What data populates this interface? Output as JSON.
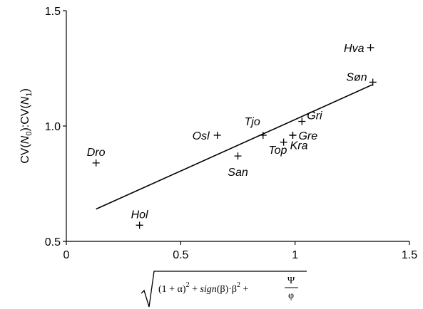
{
  "chart_data": {
    "type": "scatter",
    "title": "",
    "xlim": [
      0,
      1.5
    ],
    "ylim": [
      0.5,
      1.5
    ],
    "x_ticks": [
      0,
      0.5,
      1,
      1.5
    ],
    "x_tick_labels": [
      "0",
      "0.5",
      "1",
      "1.5"
    ],
    "y_ticks": [
      0.5,
      1.0,
      1.5
    ],
    "y_tick_labels": [
      "0.5",
      "1.0",
      "1.5"
    ],
    "ylabel": "CV(N0):CV(N1)",
    "xlabel": "sqrt((1 + α)^2 + sign(β)·β^2 + Ψ/φ)",
    "grid": false,
    "legend": "none",
    "points": [
      {
        "label": "Hva",
        "x": 1.33,
        "y": 1.34
      },
      {
        "label": "Søn",
        "x": 1.34,
        "y": 1.19
      },
      {
        "label": "Gri",
        "x": 1.03,
        "y": 1.02
      },
      {
        "label": "Gre",
        "x": 0.99,
        "y": 0.96
      },
      {
        "label": "Kra",
        "x": 0.95,
        "y": 0.93
      },
      {
        "label": "Top",
        "x": 0.99,
        "y": 0.96
      },
      {
        "label": "Tjo",
        "x": 0.86,
        "y": 0.96
      },
      {
        "label": "Osl",
        "x": 0.66,
        "y": 0.96
      },
      {
        "label": "San",
        "x": 0.75,
        "y": 0.87
      },
      {
        "label": "Dro",
        "x": 0.13,
        "y": 0.84
      },
      {
        "label": "Hol",
        "x": 0.32,
        "y": 0.57
      }
    ],
    "regression_line": {
      "x": [
        0.13,
        1.34
      ],
      "y": [
        0.64,
        1.18
      ]
    }
  },
  "axes": {
    "y_title_parts": {
      "cv1": "CV(",
      "n0": "N",
      "sub0": "0",
      "mid": "):CV(",
      "n1": "N",
      "sub1": "1",
      "end": ")"
    },
    "x_formula": {
      "open": "(1 + α)",
      "sup1": "2",
      "plus1": " + ",
      "sign": "sign",
      "beta_part": "(β)·β",
      "sup2": "2",
      "plus2": " + ",
      "frac_num": "Ψ",
      "frac_den": "φ"
    }
  }
}
